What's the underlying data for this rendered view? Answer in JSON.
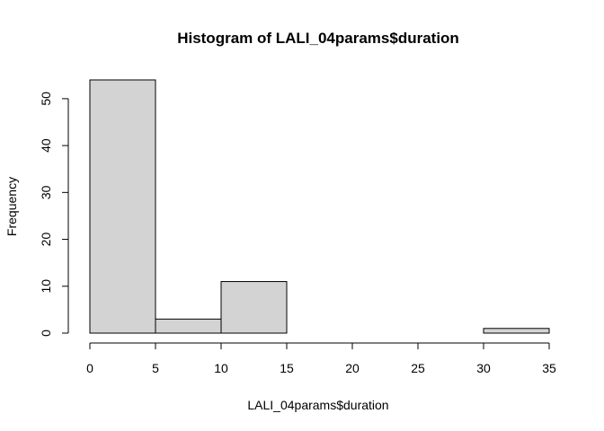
{
  "chart_data": {
    "type": "bar",
    "title": "Histogram of LALI_04params$duration",
    "xlabel": "LALI_04params$duration",
    "ylabel": "Frequency",
    "bins": [
      {
        "from": 0,
        "to": 5,
        "count": 54
      },
      {
        "from": 5,
        "to": 10,
        "count": 3
      },
      {
        "from": 10,
        "to": 15,
        "count": 11
      },
      {
        "from": 15,
        "to": 20,
        "count": 0
      },
      {
        "from": 20,
        "to": 25,
        "count": 0
      },
      {
        "from": 25,
        "to": 30,
        "count": 0
      },
      {
        "from": 30,
        "to": 35,
        "count": 1
      }
    ],
    "xlim": [
      0,
      35
    ],
    "ylim": [
      0,
      54
    ],
    "x_ticks": [
      "0",
      "5",
      "10",
      "15",
      "20",
      "25",
      "30",
      "35"
    ],
    "y_ticks": [
      "0",
      "10",
      "20",
      "30",
      "40",
      "50"
    ],
    "grid": false,
    "colors": {
      "bar_fill": "#d3d3d3",
      "bar_stroke": "#000000"
    }
  }
}
